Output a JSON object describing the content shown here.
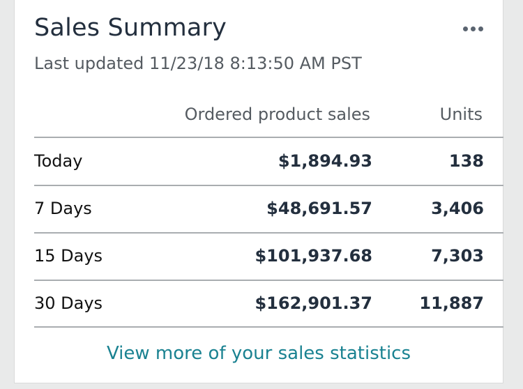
{
  "card": {
    "title": "Sales Summary",
    "last_updated": "Last updated 11/23/18 8:13:50 AM PST",
    "more_icon": "more-dots-icon"
  },
  "table": {
    "headers": {
      "sales": "Ordered product sales",
      "units": "Units"
    },
    "rows": [
      {
        "period": "Today",
        "sales": "$1,894.93",
        "units": "138"
      },
      {
        "period": "7 Days",
        "sales": "$48,691.57",
        "units": "3,406"
      },
      {
        "period": "15 Days",
        "sales": "$101,937.68",
        "units": "7,303"
      },
      {
        "period": "30 Days",
        "sales": "$162,901.37",
        "units": "11,887"
      }
    ]
  },
  "footer": {
    "link_label": "View more of your sales statistics"
  },
  "colors": {
    "link": "#1a8291",
    "title": "#232f3e"
  }
}
